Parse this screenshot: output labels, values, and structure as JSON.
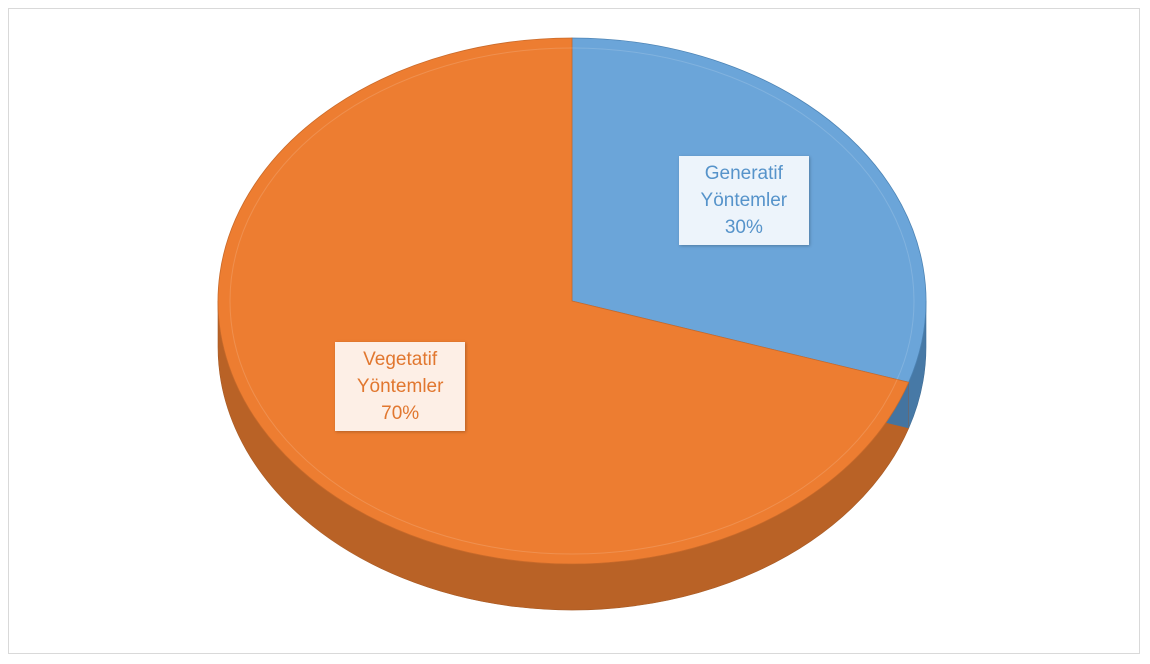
{
  "chart_data": {
    "type": "pie",
    "categories": [
      "Generatif Yöntemler",
      "Vegetatif Yöntemler"
    ],
    "values": [
      30,
      70
    ],
    "value_labels": [
      "30%",
      "70%"
    ],
    "colors": [
      "#5b9bd5",
      "#ed7d31"
    ]
  }
}
